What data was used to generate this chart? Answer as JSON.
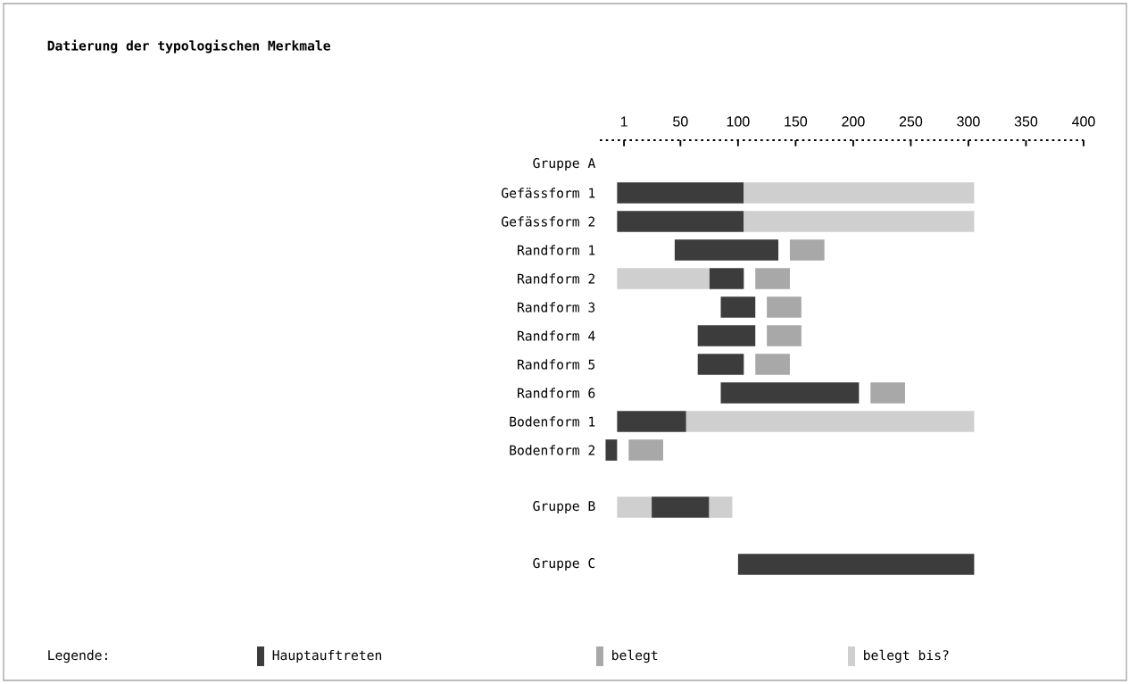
{
  "chart_data": {
    "type": "bar",
    "orientation": "horizontal",
    "title": "Datierung der typologischen Merkmale",
    "legend_title": "Legende:",
    "legend": "bottom",
    "categories": [
      "Gruppe A",
      "Gefässform 1",
      "Gefässform 2",
      "Randform 1",
      "Randform 2",
      "Randform 3",
      "Randform 4",
      "Randform 5",
      "Randform 6",
      "Bodenform 1",
      "Bodenform 2",
      null,
      "Gruppe B",
      null,
      "Gruppe C"
    ],
    "xlim": [
      -20,
      400
    ],
    "xticks": [
      1,
      50,
      100,
      150,
      200,
      250,
      300,
      350,
      400
    ],
    "series": [
      {
        "name": "Hauptauftreten",
        "color": "#3c3c3c",
        "base": [
          null,
          -5,
          -5,
          45,
          75,
          85,
          65,
          65,
          85,
          -5,
          -15,
          null,
          25,
          null,
          100
        ],
        "values": [
          null,
          110,
          110,
          90,
          30,
          30,
          50,
          40,
          120,
          60,
          10,
          null,
          50,
          null,
          205
        ]
      },
      {
        "name": "belegt",
        "color": "#a8a8a8",
        "base": [
          null,
          null,
          null,
          145,
          115,
          125,
          125,
          115,
          215,
          null,
          5,
          null,
          null,
          null,
          null
        ],
        "values": [
          null,
          null,
          null,
          30,
          30,
          30,
          30,
          30,
          30,
          null,
          30,
          null,
          null,
          null,
          null
        ]
      },
      {
        "name": "belegt bis?",
        "color": "#cfcfcf",
        "base": [
          null,
          105,
          105,
          null,
          -5,
          null,
          null,
          null,
          null,
          55,
          null,
          null,
          -5,
          null,
          null
        ],
        "values": [
          null,
          200,
          200,
          null,
          80,
          null,
          null,
          null,
          null,
          250,
          null,
          null,
          30,
          null,
          null
        ]
      },
      {
        "color": "#cfcfcf",
        "base": [
          null,
          null,
          null,
          null,
          null,
          null,
          null,
          null,
          null,
          null,
          null,
          null,
          75,
          null,
          null
        ],
        "values": [
          null,
          null,
          null,
          null,
          null,
          null,
          null,
          null,
          null,
          null,
          null,
          null,
          20,
          null,
          null
        ]
      }
    ]
  }
}
